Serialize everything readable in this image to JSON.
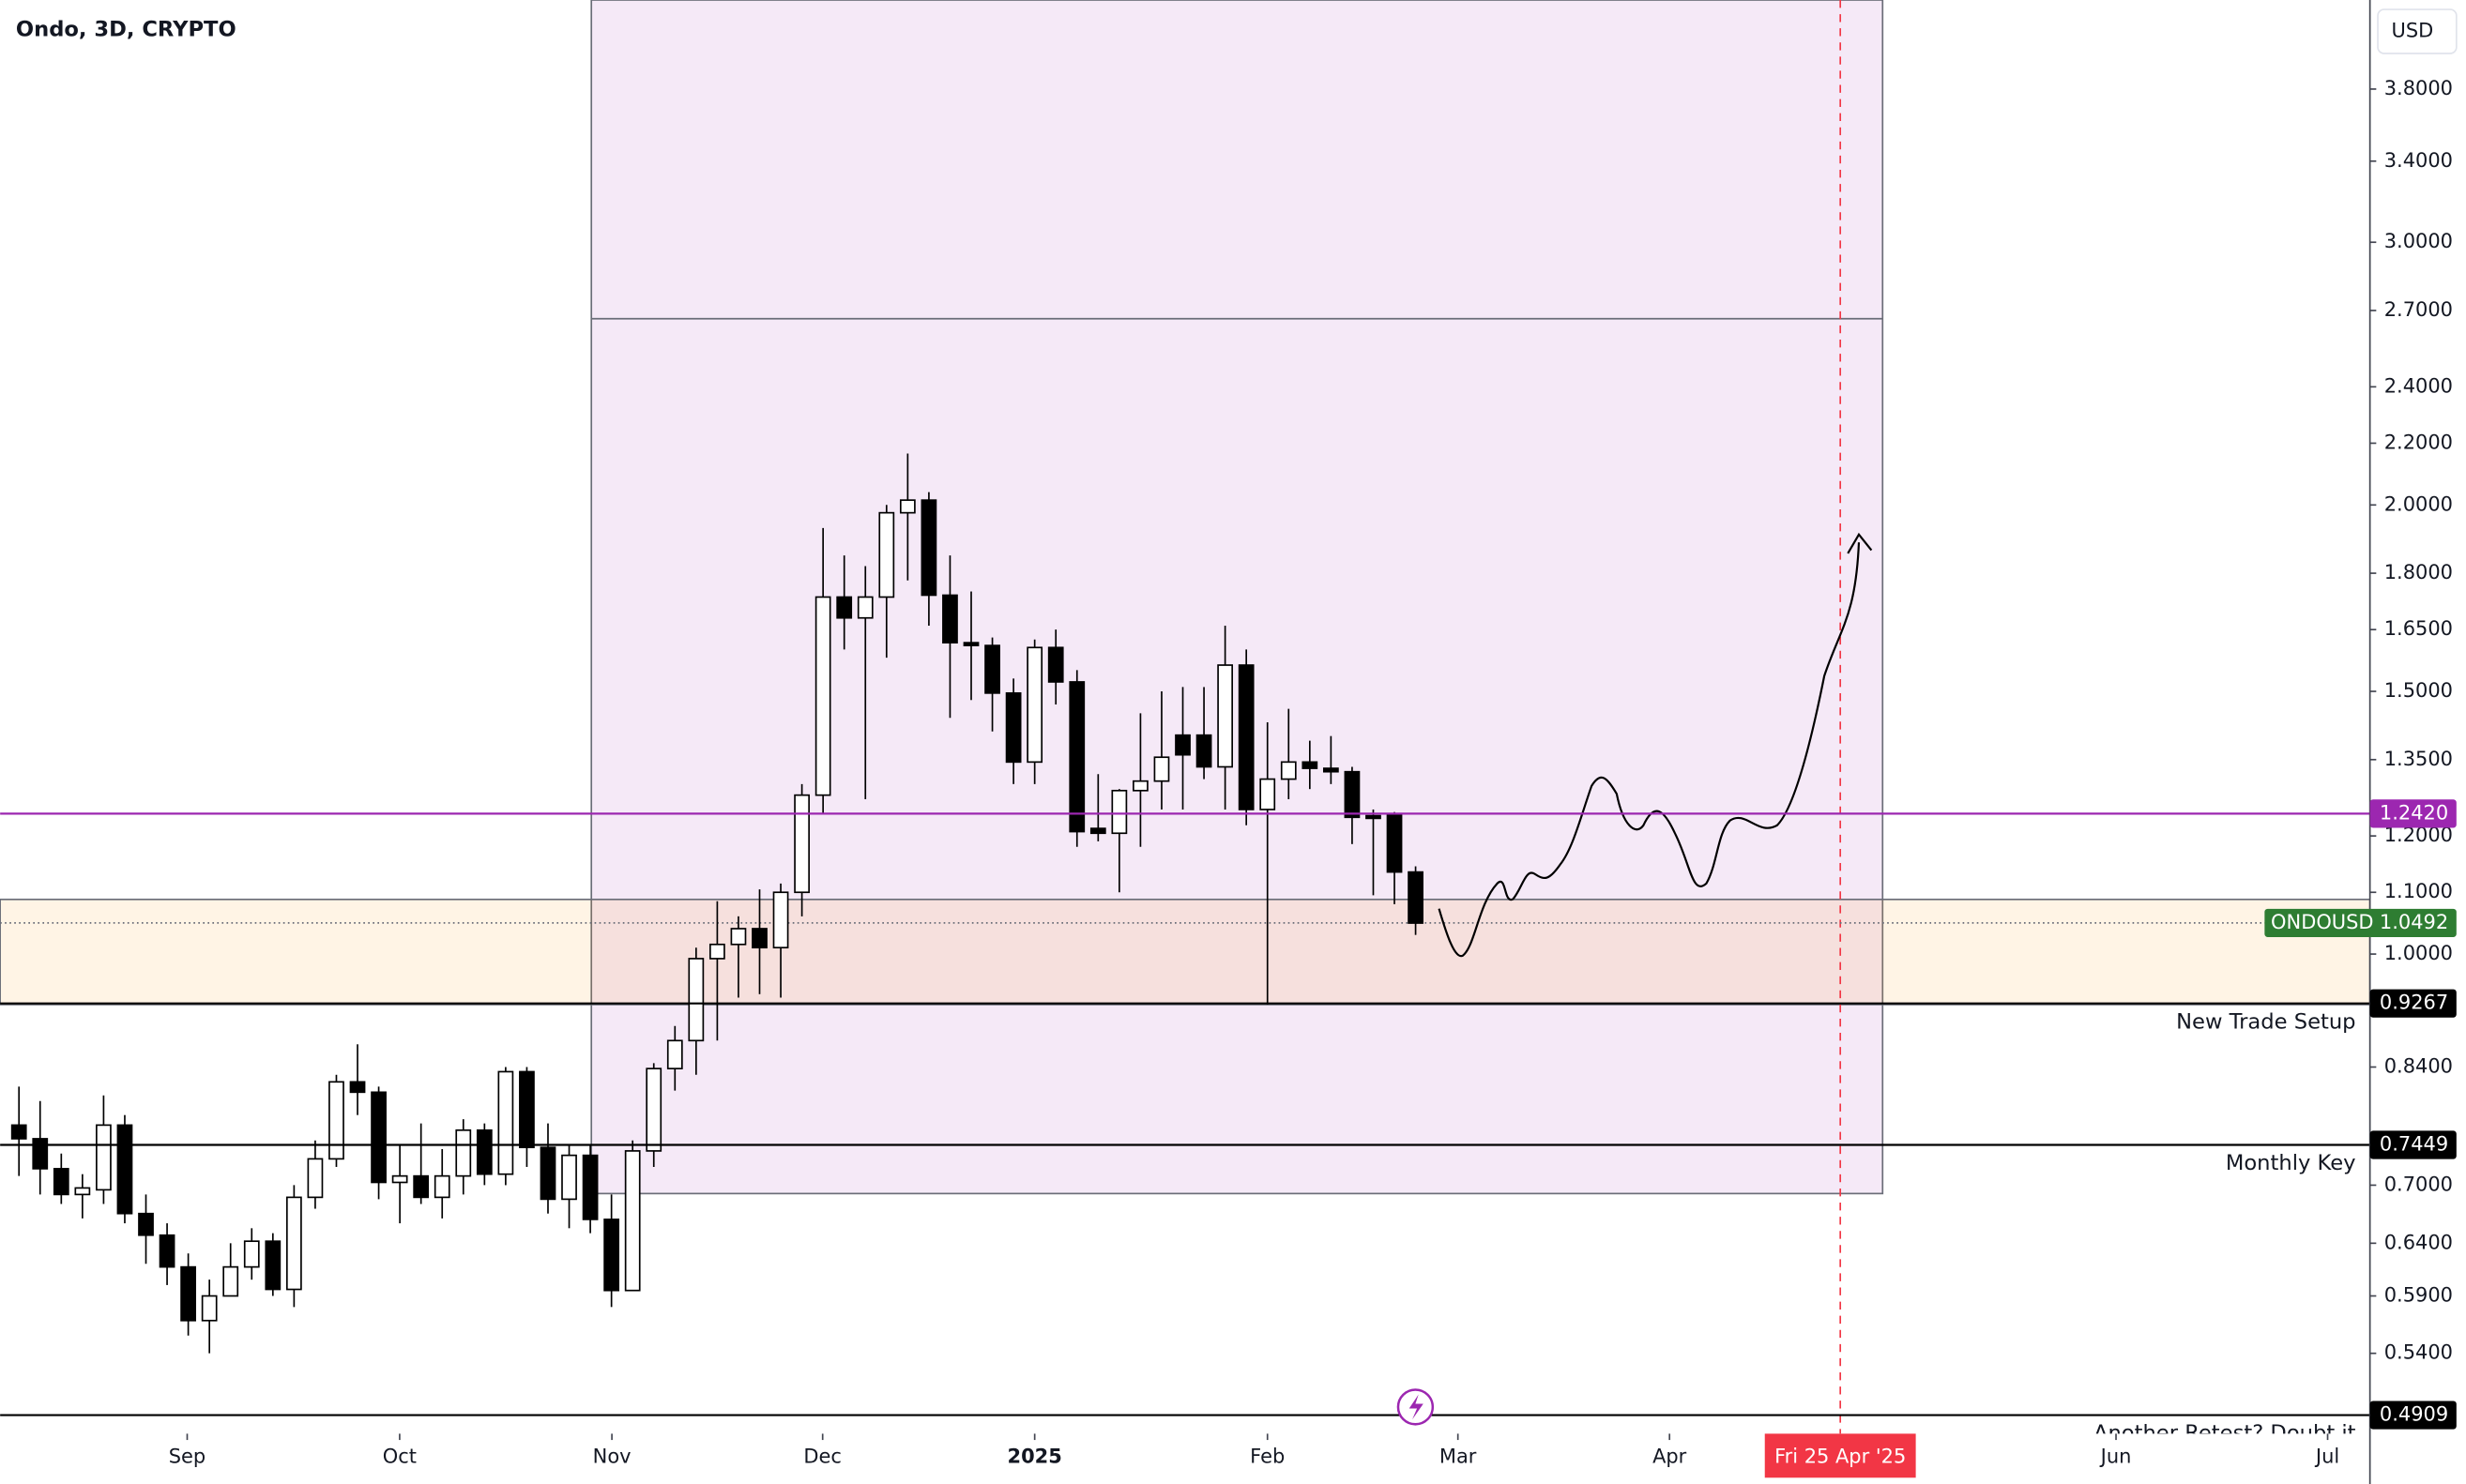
{
  "chart_data": {
    "type": "candlestick",
    "title": "Ondo, 3D, CRYPTO",
    "currency": "USD",
    "log_scale": true,
    "up_color": "#ffffff",
    "down_color": "#000000",
    "x": [
      0,
      1,
      2,
      3,
      4,
      5,
      6,
      7,
      8,
      9,
      10,
      11,
      12,
      13,
      14,
      15,
      16,
      17,
      18,
      19,
      20,
      21,
      22,
      23,
      24,
      25,
      26,
      27,
      28,
      29,
      30,
      31,
      32,
      33,
      34,
      35,
      36,
      37,
      38,
      39,
      40,
      41,
      42,
      43,
      44,
      45,
      46,
      47,
      48,
      49,
      50,
      51,
      52,
      53,
      54,
      55,
      56,
      57,
      58,
      59,
      60,
      61,
      62,
      63,
      64,
      65,
      66
    ],
    "open": [
      0.768,
      0.752,
      0.718,
      0.69,
      0.695,
      0.768,
      0.67,
      0.648,
      0.617,
      0.568,
      0.59,
      0.617,
      0.642,
      0.596,
      0.687,
      0.729,
      0.821,
      0.808,
      0.703,
      0.71,
      0.687,
      0.71,
      0.762,
      0.712,
      0.834,
      0.742,
      0.685,
      0.733,
      0.664,
      0.595,
      0.738,
      0.838,
      0.875,
      0.993,
      1.015,
      1.04,
      1.01,
      1.1,
      1.278,
      1.735,
      1.68,
      1.735,
      1.976,
      2.015,
      1.74,
      1.617,
      1.61,
      1.496,
      1.345,
      1.605,
      1.522,
      1.214,
      1.205,
      1.287,
      1.306,
      1.402,
      1.402,
      1.335,
      1.562,
      1.25,
      1.31,
      1.345,
      1.332,
      1.325,
      1.238,
      1.24,
      1.135
    ],
    "high": [
      0.815,
      0.797,
      0.735,
      0.712,
      0.804,
      0.78,
      0.69,
      0.66,
      0.63,
      0.605,
      0.64,
      0.655,
      0.65,
      0.7,
      0.75,
      0.83,
      0.87,
      0.815,
      0.745,
      0.77,
      0.74,
      0.775,
      0.77,
      0.84,
      0.84,
      0.77,
      0.745,
      0.745,
      0.69,
      0.75,
      0.845,
      0.895,
      1.01,
      1.085,
      1.06,
      1.105,
      1.115,
      1.3,
      1.93,
      1.85,
      1.82,
      2.0,
      2.165,
      2.04,
      1.85,
      1.75,
      1.63,
      1.53,
      1.625,
      1.65,
      1.55,
      1.32,
      1.29,
      1.45,
      1.5,
      1.51,
      1.51,
      1.66,
      1.6,
      1.43,
      1.46,
      1.39,
      1.4,
      1.335,
      1.25,
      1.245,
      1.145
    ],
    "low": [
      0.71,
      0.69,
      0.68,
      0.665,
      0.68,
      0.66,
      0.62,
      0.6,
      0.555,
      0.54,
      0.59,
      0.605,
      0.59,
      0.58,
      0.675,
      0.72,
      0.78,
      0.685,
      0.66,
      0.68,
      0.665,
      0.69,
      0.7,
      0.7,
      0.72,
      0.67,
      0.655,
      0.65,
      0.58,
      0.595,
      0.72,
      0.81,
      0.83,
      0.875,
      0.935,
      0.94,
      0.935,
      1.06,
      1.24,
      1.6,
      1.27,
      1.58,
      1.78,
      1.66,
      1.44,
      1.48,
      1.41,
      1.3,
      1.3,
      1.47,
      1.18,
      1.19,
      1.1,
      1.18,
      1.25,
      1.25,
      1.31,
      1.25,
      1.22,
      0.925,
      1.27,
      1.29,
      1.3,
      1.185,
      1.095,
      1.08,
      1.03
    ],
    "close": [
      0.752,
      0.718,
      0.69,
      0.697,
      0.768,
      0.67,
      0.648,
      0.617,
      0.568,
      0.59,
      0.617,
      0.642,
      0.596,
      0.687,
      0.729,
      0.821,
      0.808,
      0.703,
      0.71,
      0.687,
      0.71,
      0.762,
      0.712,
      0.834,
      0.742,
      0.685,
      0.733,
      0.664,
      0.595,
      0.738,
      0.838,
      0.875,
      0.993,
      1.015,
      1.04,
      1.01,
      1.1,
      1.278,
      1.735,
      1.68,
      1.735,
      1.976,
      2.015,
      1.74,
      1.617,
      1.61,
      1.496,
      1.345,
      1.605,
      1.522,
      1.208,
      1.205,
      1.287,
      1.306,
      1.355,
      1.36,
      1.335,
      1.562,
      1.25,
      1.31,
      1.345,
      1.332,
      1.325,
      1.235,
      1.233,
      1.135,
      1.049
    ],
    "xlim": [
      -0.89,
      111.1
    ],
    "xticks": [
      {
        "value": 7.95,
        "label": "Sep"
      },
      {
        "value": 17.99,
        "label": "Oct"
      },
      {
        "value": 28.02,
        "label": "Nov"
      },
      {
        "value": 37.98,
        "label": "Dec"
      },
      {
        "value": 48.0,
        "label": "2025"
      },
      {
        "value": 59.0,
        "label": "Feb"
      },
      {
        "value": 68.0,
        "label": "Mar"
      },
      {
        "value": 78.0,
        "label": "Apr"
      },
      {
        "value": 99.1,
        "label": "Jun"
      },
      {
        "value": 109.1,
        "label": "Jul"
      }
    ],
    "ylim": [
      0.477,
      4.36
    ],
    "yticks": [
      {
        "value": 3.8,
        "label": "3.8000"
      },
      {
        "value": 3.4,
        "label": "3.4000"
      },
      {
        "value": 3.0,
        "label": "3.0000"
      },
      {
        "value": 2.7,
        "label": "2.7000"
      },
      {
        "value": 2.4,
        "label": "2.4000"
      },
      {
        "value": 2.2,
        "label": "2.2000"
      },
      {
        "value": 2.0,
        "label": "2.0000"
      },
      {
        "value": 1.8,
        "label": "1.8000"
      },
      {
        "value": 1.65,
        "label": "1.6500"
      },
      {
        "value": 1.5,
        "label": "1.5000"
      },
      {
        "value": 1.35,
        "label": "1.3500"
      },
      {
        "value": 1.2,
        "label": "1.2000"
      },
      {
        "value": 1.1,
        "label": "1.1000"
      },
      {
        "value": 1.0,
        "label": "1.0000"
      },
      {
        "value": 0.84,
        "label": "0.8400"
      },
      {
        "value": 0.7,
        "label": "0.7000"
      },
      {
        "value": 0.64,
        "label": "0.6400"
      },
      {
        "value": 0.59,
        "label": "0.5900"
      },
      {
        "value": 0.54,
        "label": "0.5400"
      }
    ],
    "box": {
      "x0": 27.05,
      "x1": 88.07,
      "y0": 0.691,
      "y1": 4.36,
      "divider": 2.666,
      "color": "#9c27b0"
    },
    "zone": {
      "y0": 0.925,
      "y1": 1.088,
      "color": "#ff9800"
    },
    "levels": [
      {
        "value": 1.242,
        "label": "1.2420",
        "color": "#9c27b0"
      },
      {
        "value": 0.9267,
        "label": "0.9267",
        "text": "New Trade Setup",
        "color": "#000000"
      },
      {
        "value": 0.7449,
        "label": "0.7449",
        "text": "Monthly Key",
        "color": "#000000"
      },
      {
        "value": 0.4909,
        "label": "0.4909",
        "text": "Another Retest? Doubt it",
        "color": "#000000"
      }
    ],
    "price": {
      "name": "ONDOUSD",
      "value": 1.0492,
      "label": "1.0492",
      "color": "#2e7d32"
    },
    "cursor": {
      "x": 86.07,
      "label": "Fri 25 Apr '25",
      "color": "#f23645"
    }
  }
}
